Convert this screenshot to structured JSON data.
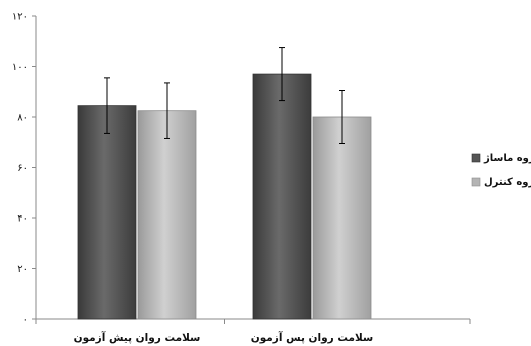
{
  "chart_data": {
    "type": "bar",
    "categories": [
      "سلامت روان پیش آزمون",
      "سلامت روان پس آزمون"
    ],
    "series": [
      {
        "name": "گروه ماساژ",
        "values": [
          84.5,
          97
        ],
        "error": [
          11,
          10.5
        ],
        "color": "#555555"
      },
      {
        "name": "گروه کنترل",
        "values": [
          82.5,
          80
        ],
        "error": [
          11,
          10.5
        ],
        "color": "#b4b4b4"
      }
    ],
    "yticks": [
      "۰",
      "۲۰",
      "۴۰",
      "۶۰",
      "۸۰",
      "۱۰۰",
      "۱۲۰"
    ],
    "ylim": [
      0,
      120
    ],
    "grid": false,
    "legend": "right"
  }
}
